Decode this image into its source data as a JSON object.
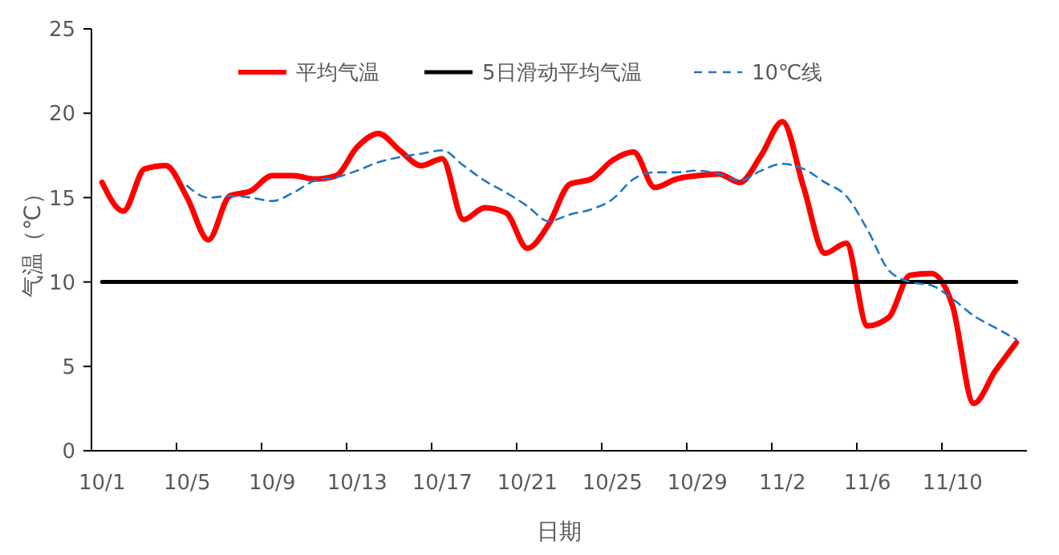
{
  "chart_data": {
    "type": "line",
    "xlabel": "日期",
    "ylabel": "气温（℃）",
    "ylim": [
      0,
      25
    ],
    "yticks": [
      0,
      5,
      10,
      15,
      20,
      25
    ],
    "legend": "top",
    "grid": false,
    "marker": "none",
    "categories": [
      "10/1",
      null,
      null,
      null,
      "10/5",
      null,
      null,
      null,
      "10/9",
      null,
      null,
      null,
      "10/13",
      null,
      null,
      null,
      "10/17",
      null,
      null,
      null,
      "10/21",
      null,
      null,
      null,
      "10/25",
      null,
      null,
      null,
      "10/29",
      null,
      null,
      null,
      "11/2",
      null,
      null,
      null,
      "11/6",
      null,
      null,
      null,
      "11/10",
      null,
      null,
      null
    ],
    "series": [
      {
        "name": "平均气温",
        "color": "#ff0000",
        "values": [
          15.9,
          14.2,
          16.7,
          16.9,
          15.0,
          12.5,
          15.1,
          15.4,
          16.3,
          16.3,
          16.1,
          16.3,
          18.0,
          18.8,
          17.8,
          16.9,
          17.3,
          13.7,
          14.4,
          14.1,
          12.0,
          13.4,
          15.8,
          16.1,
          17.2,
          17.7,
          15.6,
          16.1,
          16.3,
          16.4,
          15.9,
          17.5,
          19.5,
          15.6,
          11.7,
          12.3,
          7.4,
          7.9,
          10.4,
          10.5,
          8.6,
          2.8,
          4.7,
          6.4
        ]
      },
      {
        "name": "5日滑动平均气温",
        "color": "#000000",
        "values": [
          10,
          10,
          10,
          10,
          10,
          10,
          10,
          10,
          10,
          10,
          10,
          10,
          10,
          10,
          10,
          10,
          10,
          10,
          10,
          10,
          10,
          10,
          10,
          10,
          10,
          10,
          10,
          10,
          10,
          10,
          10,
          10,
          10,
          10,
          10,
          10,
          10,
          10,
          10,
          10,
          10,
          10,
          10,
          10
        ]
      },
      {
        "name": "10℃线",
        "color": "#1f78c8",
        "line_style": "dashed",
        "values": [
          null,
          null,
          null,
          null,
          15.7,
          15.0,
          15.1,
          15.0,
          14.8,
          15.3,
          16.0,
          16.2,
          16.6,
          17.1,
          17.4,
          17.6,
          17.8,
          16.9,
          16.0,
          15.3,
          14.5,
          13.6,
          14.0,
          14.3,
          14.9,
          16.1,
          16.5,
          16.5,
          16.6,
          16.4,
          16.0,
          16.6,
          17.0,
          16.7,
          15.9,
          15.1,
          13.1,
          10.7,
          10.0,
          9.8,
          9.0,
          8.0,
          7.3,
          6.6
        ]
      }
    ]
  }
}
